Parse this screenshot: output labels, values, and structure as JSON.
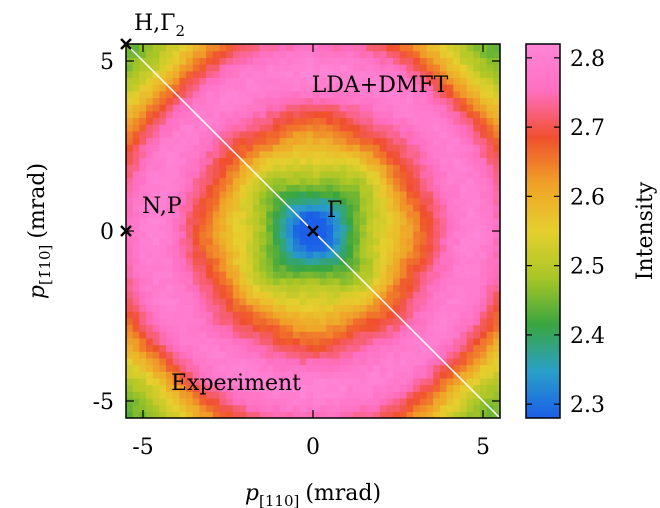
{
  "chart_data": {
    "type": "heatmap",
    "title": "",
    "xlabel": "p",
    "xlabel_subscript": "[110]",
    "xlabel_unit": "(mrad)",
    "ylabel": "p",
    "ylabel_subscript": "[1̄10]",
    "ylabel_unit": "(mrad)",
    "xlim": [
      -5.5,
      5.5
    ],
    "ylim": [
      -5.5,
      5.5
    ],
    "xticks": [
      -5,
      0,
      5
    ],
    "xtick_labels": [
      "-5",
      "0",
      "5"
    ],
    "yticks": [
      -5,
      0,
      5
    ],
    "ytick_labels": [
      "-5",
      "0",
      "5"
    ],
    "grid": 56,
    "diagonal_separator": true,
    "colorbar": {
      "label": "Intensity",
      "min": 2.28,
      "max": 2.82,
      "ticks": [
        2.3,
        2.4,
        2.5,
        2.6,
        2.7,
        2.8
      ],
      "tick_labels": [
        "2.3",
        "2.4",
        "2.5",
        "2.6",
        "2.7",
        "2.8"
      ],
      "colors": [
        "#1b5fe8",
        "#2aa0c8",
        "#3aa640",
        "#a8c626",
        "#e6cf2e",
        "#f0a228",
        "#f0502e",
        "#ff6fc0",
        "#ff86d8"
      ]
    },
    "annotations": [
      {
        "text": "H,Γ",
        "sub": "2",
        "x": -5.5,
        "y": 5.5,
        "marker": "x"
      },
      {
        "text": "N,P",
        "sub": "",
        "x": -5.5,
        "y": 0,
        "marker": "x"
      },
      {
        "text": "Γ",
        "sub": "",
        "x": 0,
        "y": 0,
        "marker": "x"
      }
    ],
    "region_labels": {
      "upper": "LDA+DMFT",
      "lower": "Experiment"
    }
  }
}
